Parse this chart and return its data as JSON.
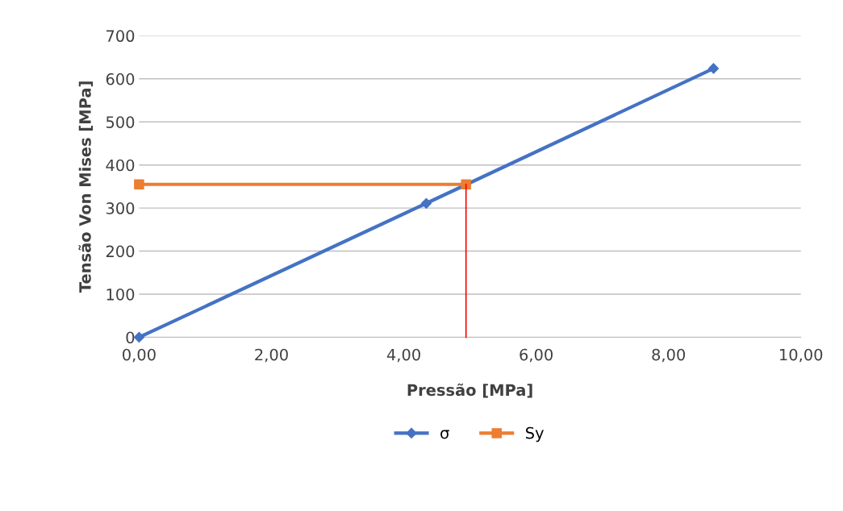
{
  "chart_data": {
    "type": "line",
    "xlabel": "Pressão [MPa]",
    "ylabel": "Tensão Von Mises [MPa]",
    "xlim": [
      0,
      10
    ],
    "ylim": [
      0,
      700
    ],
    "xticks": [
      {
        "value": 0,
        "label": "0,00"
      },
      {
        "value": 2,
        "label": "2,00"
      },
      {
        "value": 4,
        "label": "4,00"
      },
      {
        "value": 6,
        "label": "6,00"
      },
      {
        "value": 8,
        "label": "8,00"
      },
      {
        "value": 10,
        "label": "10,00"
      }
    ],
    "yticks": [
      0,
      100,
      200,
      300,
      400,
      500,
      600,
      700
    ],
    "grid": "y",
    "legend": "bottom",
    "series": [
      {
        "name": "σ",
        "color": "#4472c4",
        "x": [
          0,
          4.34,
          8.68
        ],
        "values": [
          0,
          311,
          624
        ],
        "marker": "diamond"
      },
      {
        "name": "Sy",
        "color": "#ed7d31",
        "x": [
          0,
          4.94
        ],
        "values": [
          355,
          355
        ],
        "marker": "square"
      },
      {
        "color": "#ff0000",
        "x": [
          4.94,
          4.94
        ],
        "values": [
          355,
          0
        ],
        "marker": "none"
      }
    ]
  }
}
